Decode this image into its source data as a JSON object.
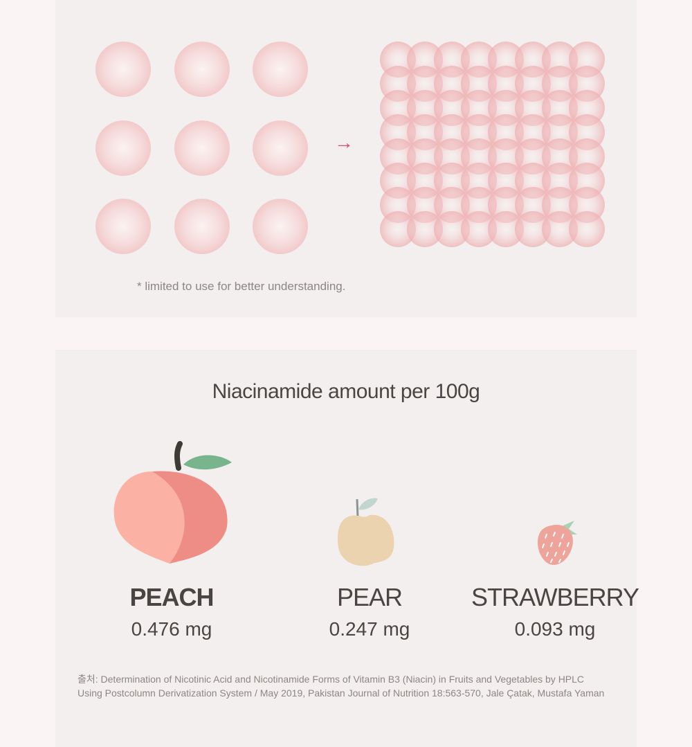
{
  "top": {
    "arrow_icon": "right-arrow",
    "note": "* limited to use for better understanding.",
    "colors": {
      "ball": "#f0b8ba",
      "arrow": "#e0476a"
    }
  },
  "bottom": {
    "title": "Niacinamide amount per 100g",
    "fruits": [
      {
        "name": "PEACH",
        "amount": "0.476 mg",
        "icon": "peach-icon"
      },
      {
        "name": "PEAR",
        "amount": "0.247 mg",
        "icon": "pear-icon"
      },
      {
        "name": "STRAWBERRY",
        "amount": "0.093 mg",
        "icon": "strawberry-icon"
      }
    ],
    "source_line1": "출처:  Determination of Nicotinic Acid and Nicotinamide Forms of Vitamin B3 (Niacin) in Fruits and Vegetables by HPLC",
    "source_line2": "Using Postcolumn Derivatization System / May 2019, Pakistan Journal of Nutrition 18:563-570, Jale Çatak, Mustafa Yaman"
  }
}
